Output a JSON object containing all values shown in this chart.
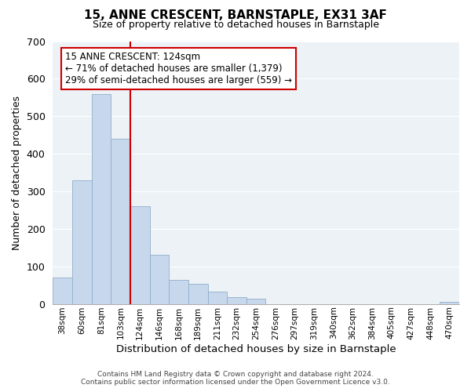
{
  "title": "15, ANNE CRESCENT, BARNSTAPLE, EX31 3AF",
  "subtitle": "Size of property relative to detached houses in Barnstaple",
  "xlabel": "Distribution of detached houses by size in Barnstaple",
  "ylabel": "Number of detached properties",
  "footer_line1": "Contains HM Land Registry data © Crown copyright and database right 2024.",
  "footer_line2": "Contains public sector information licensed under the Open Government Licence v3.0.",
  "bar_labels": [
    "38sqm",
    "60sqm",
    "81sqm",
    "103sqm",
    "124sqm",
    "146sqm",
    "168sqm",
    "189sqm",
    "211sqm",
    "232sqm",
    "254sqm",
    "276sqm",
    "297sqm",
    "319sqm",
    "340sqm",
    "362sqm",
    "384sqm",
    "405sqm",
    "427sqm",
    "448sqm",
    "470sqm"
  ],
  "bar_values": [
    70,
    330,
    560,
    440,
    260,
    130,
    65,
    53,
    33,
    18,
    14,
    0,
    0,
    0,
    0,
    0,
    0,
    0,
    0,
    0,
    5
  ],
  "bar_color": "#c8d8ec",
  "bar_edge_color": "#90aec8",
  "vline_color": "#cc0000",
  "ylim": [
    0,
    700
  ],
  "yticks": [
    0,
    100,
    200,
    300,
    400,
    500,
    600,
    700
  ],
  "annotation_title": "15 ANNE CRESCENT: 124sqm",
  "annotation_line1": "← 71% of detached houses are smaller (1,379)",
  "annotation_line2": "29% of semi-detached houses are larger (559) →",
  "annotation_box_color": "#ffffff",
  "annotation_box_edge": "#cc0000",
  "background_color": "#edf2f7",
  "grid_color": "#ffffff",
  "title_fontsize": 11,
  "subtitle_fontsize": 9
}
